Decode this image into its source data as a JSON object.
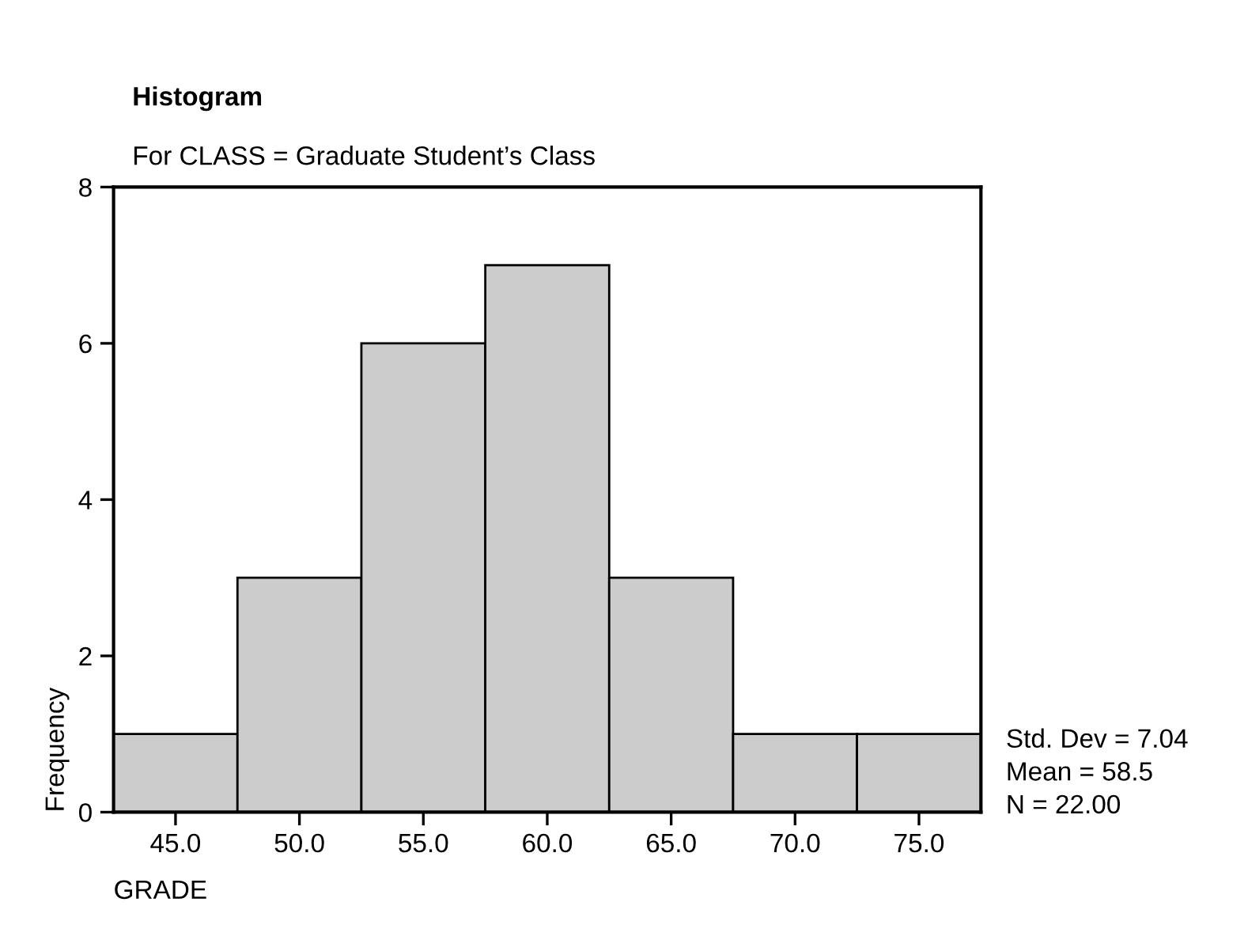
{
  "chart_data": {
    "type": "histogram",
    "title": "Histogram",
    "subtitle": "For CLASS = Graduate Student’s Class",
    "xlabel": "GRADE",
    "ylabel": "Frequency",
    "bins": [
      42.5,
      47.5,
      52.5,
      57.5,
      62.5,
      67.5,
      72.5,
      77.5
    ],
    "values": [
      1,
      3,
      6,
      7,
      3,
      1,
      1
    ],
    "color": "#cccccc",
    "xlim": [
      42.5,
      77.5
    ],
    "xticks": [
      {
        "value": 45,
        "label": "45.0"
      },
      {
        "value": 50,
        "label": "50.0"
      },
      {
        "value": 55,
        "label": "55.0"
      },
      {
        "value": 60,
        "label": "60.0"
      },
      {
        "value": 65,
        "label": "65.0"
      },
      {
        "value": 70,
        "label": "70.0"
      },
      {
        "value": 75,
        "label": "75.0"
      }
    ],
    "ylim": [
      0,
      8
    ],
    "yticks": [
      0,
      2,
      4,
      6,
      8
    ],
    "grid": false,
    "legend": false,
    "annotations": [
      "Std. Dev = 7.04",
      "Mean = 58.5",
      "N = 22.00"
    ]
  }
}
